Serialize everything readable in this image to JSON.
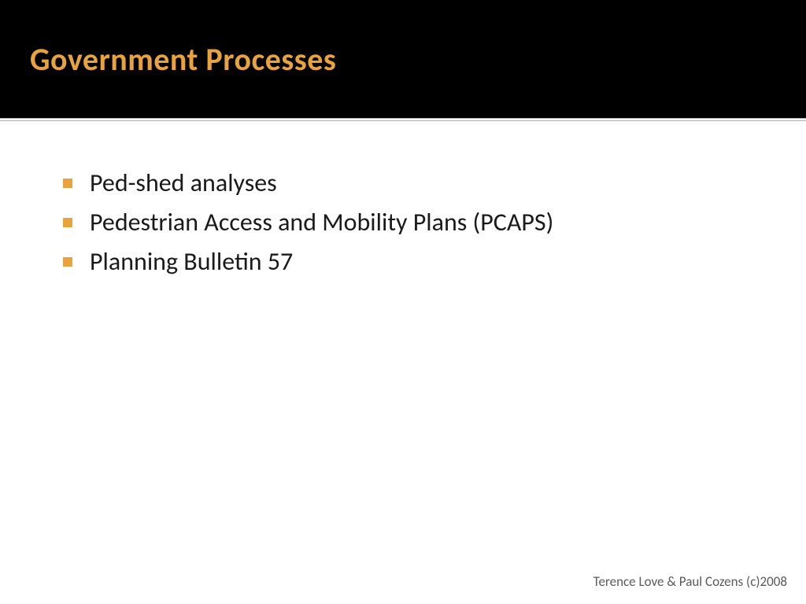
{
  "slide": {
    "title": "Government Processes",
    "title_color": "#e8a33d",
    "title_fontsize": 40,
    "title_bg": "#000000",
    "bullets": [
      "Ped-shed analyses",
      "Pedestrian Access and Mobility Plans (PCAPS)",
      "Planning Bulletin 57"
    ],
    "bullet_marker_color": "#e8a33d",
    "bullet_fontsize": 32,
    "body_text_color": "#1a1a1a",
    "footer": "Terence Love & Paul Cozens (c)2008",
    "footer_color": "#5a5a5a",
    "background_color": "#ffffff",
    "divider_color": "#b0b0b0"
  }
}
